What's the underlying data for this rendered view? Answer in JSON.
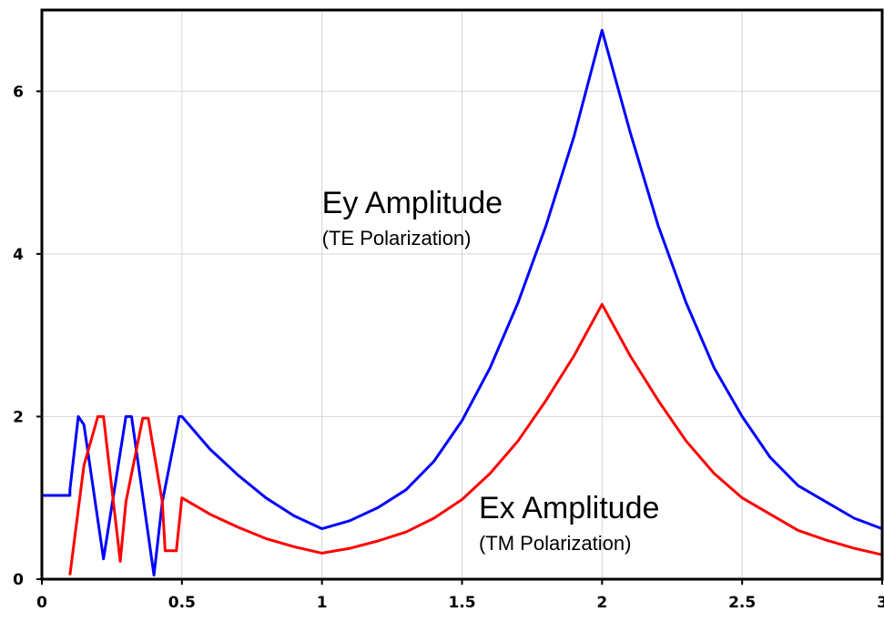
{
  "chart_data": {
    "type": "line",
    "xlim": [
      0,
      3
    ],
    "ylim": [
      0,
      7
    ],
    "grid": true,
    "x_ticks": [
      {
        "value": 0,
        "label": "0"
      },
      {
        "value": 0.5,
        "label": "0.5"
      },
      {
        "value": 1,
        "label": "1"
      },
      {
        "value": 1.5,
        "label": "1.5"
      },
      {
        "value": 2,
        "label": "2"
      },
      {
        "value": 2.5,
        "label": "2.5"
      },
      {
        "value": 3,
        "label": "3"
      }
    ],
    "y_ticks": [
      {
        "value": 0,
        "label": "0"
      },
      {
        "value": 2,
        "label": "2"
      },
      {
        "value": 4,
        "label": "4"
      },
      {
        "value": 6,
        "label": "6"
      }
    ],
    "series": [
      {
        "color": "#0000ff",
        "points": [
          [
            0,
            1.03
          ],
          [
            0.1,
            1.03
          ],
          [
            0.1,
            1.1
          ],
          [
            0.13,
            2.0
          ],
          [
            0.15,
            1.9
          ],
          [
            0.22,
            0.25
          ],
          [
            0.3,
            2.0
          ],
          [
            0.32,
            2.0
          ],
          [
            0.4,
            0.05
          ],
          [
            0.43,
            0.95
          ],
          [
            0.49,
            2.0
          ],
          [
            0.5,
            2.0
          ],
          [
            0.6,
            1.6
          ],
          [
            0.7,
            1.28
          ],
          [
            0.8,
            1.0
          ],
          [
            0.9,
            0.78
          ],
          [
            1.0,
            0.62
          ],
          [
            1.1,
            0.72
          ],
          [
            1.2,
            0.88
          ],
          [
            1.3,
            1.1
          ],
          [
            1.4,
            1.45
          ],
          [
            1.5,
            1.95
          ],
          [
            1.6,
            2.6
          ],
          [
            1.7,
            3.4
          ],
          [
            1.8,
            4.35
          ],
          [
            1.9,
            5.45
          ],
          [
            2.0,
            6.75
          ],
          [
            2.1,
            5.5
          ],
          [
            2.2,
            4.35
          ],
          [
            2.3,
            3.4
          ],
          [
            2.4,
            2.6
          ],
          [
            2.5,
            2.0
          ],
          [
            2.6,
            1.5
          ],
          [
            2.7,
            1.15
          ],
          [
            2.8,
            0.95
          ],
          [
            2.9,
            0.75
          ],
          [
            3.0,
            0.62
          ]
        ]
      },
      {
        "color": "#ff0000",
        "points": [
          [
            0.1,
            0.05
          ],
          [
            0.15,
            1.4
          ],
          [
            0.2,
            2.0
          ],
          [
            0.22,
            2.0
          ],
          [
            0.28,
            0.22
          ],
          [
            0.3,
            0.95
          ],
          [
            0.36,
            1.98
          ],
          [
            0.38,
            1.98
          ],
          [
            0.43,
            0.95
          ],
          [
            0.44,
            0.35
          ],
          [
            0.48,
            0.35
          ],
          [
            0.5,
            1.0
          ],
          [
            0.6,
            0.8
          ],
          [
            0.7,
            0.64
          ],
          [
            0.8,
            0.5
          ],
          [
            0.9,
            0.4
          ],
          [
            1.0,
            0.32
          ],
          [
            1.1,
            0.38
          ],
          [
            1.2,
            0.47
          ],
          [
            1.3,
            0.58
          ],
          [
            1.4,
            0.75
          ],
          [
            1.5,
            0.98
          ],
          [
            1.6,
            1.3
          ],
          [
            1.7,
            1.7
          ],
          [
            1.8,
            2.2
          ],
          [
            1.9,
            2.75
          ],
          [
            2.0,
            3.38
          ],
          [
            2.1,
            2.75
          ],
          [
            2.2,
            2.2
          ],
          [
            2.3,
            1.7
          ],
          [
            2.4,
            1.3
          ],
          [
            2.5,
            1.0
          ],
          [
            2.6,
            0.8
          ],
          [
            2.7,
            0.6
          ],
          [
            2.8,
            0.48
          ],
          [
            2.9,
            0.38
          ],
          [
            3.0,
            0.3
          ]
        ]
      }
    ],
    "annotations": [
      {
        "text": "Ey Amplitude",
        "sub": "(TE Polarization)",
        "x": 1.0,
        "y": 4.5
      },
      {
        "text": "Ex Amplitude",
        "sub": "(TM Polarization)",
        "x": 1.56,
        "y": 0.75
      }
    ]
  }
}
